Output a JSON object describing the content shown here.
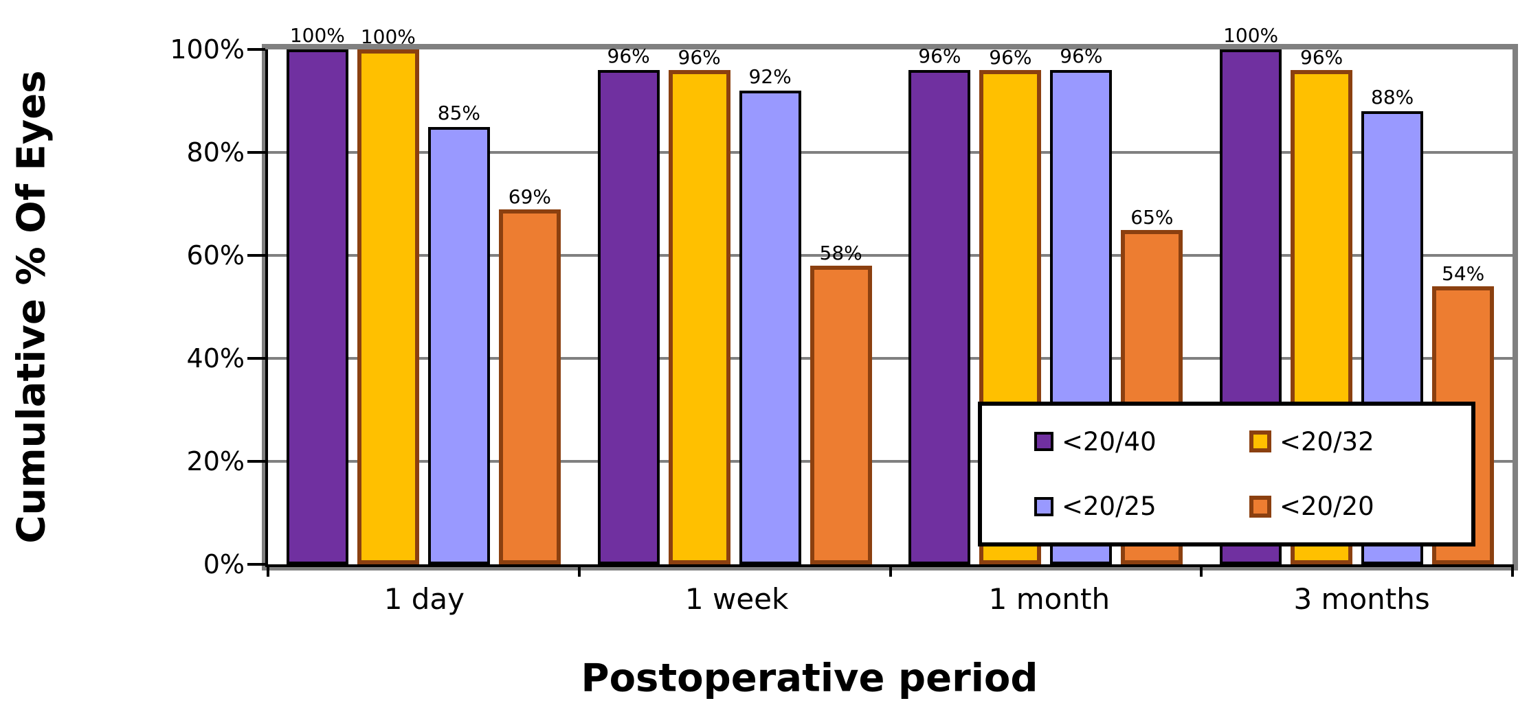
{
  "chart_data": {
    "type": "bar",
    "title": "",
    "xlabel": "Postoperative period",
    "ylabel": "Cumulative % Of Eyes",
    "categories": [
      "1 day",
      "1 week",
      "1 month",
      "3 months"
    ],
    "series": [
      {
        "name": "<20/40",
        "fill": "#7030A0",
        "border": "#000000",
        "border_width": 4,
        "values": [
          100,
          96,
          96,
          100
        ]
      },
      {
        "name": "<20/32",
        "fill": "#FFC000",
        "border": "#8B4010",
        "border_width": 6,
        "values": [
          100,
          96,
          96,
          96
        ]
      },
      {
        "name": "<20/25",
        "fill": "#9999FF",
        "border": "#000000",
        "border_width": 4,
        "values": [
          85,
          92,
          96,
          88
        ]
      },
      {
        "name": "<20/20",
        "fill": "#ED7D31",
        "border": "#8B4010",
        "border_width": 6,
        "values": [
          69,
          58,
          65,
          54
        ]
      }
    ],
    "data_labels": [
      [
        "100%",
        "100%",
        "85%",
        "69%"
      ],
      [
        "96%",
        "96%",
        "92%",
        "58%"
      ],
      [
        "96%",
        "96%",
        "96%",
        "65%"
      ],
      [
        "100%",
        "96%",
        "88%",
        "54%"
      ]
    ],
    "data_label_format": "{value}%",
    "y_axis": {
      "min": 0,
      "max": 100,
      "tick_step": 20,
      "tick_labels": [
        "0%",
        "20%",
        "40%",
        "60%",
        "80%",
        "100%"
      ]
    },
    "grid": true,
    "gridline_color": "#808080",
    "plot_border_color": "#808080",
    "axis_color": "#000000",
    "legend": {
      "position": "inside-bottom-right",
      "columns": 2,
      "items": [
        "<20/40",
        "<20/32",
        "<20/25",
        "<20/20"
      ]
    }
  }
}
